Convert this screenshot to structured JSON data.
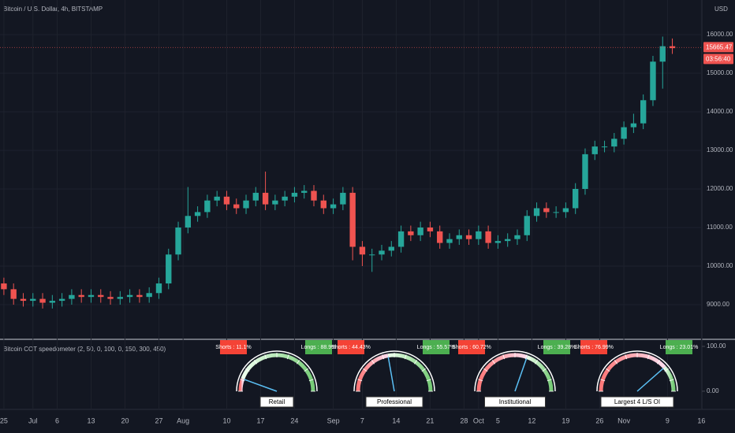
{
  "header": {
    "title": "Bitcoin / U.S. Dollar, 4h, BITSTAMP",
    "currency": "USD",
    "countdown": "03:56:40"
  },
  "chart_data": [
    {
      "type": "candlestick",
      "x": [
        0,
        2,
        4,
        6,
        8,
        10,
        12,
        14,
        16,
        18,
        20,
        22,
        24,
        26,
        28,
        30,
        32,
        34,
        36,
        38,
        40,
        42,
        44,
        46,
        48,
        50,
        52,
        54,
        56,
        58,
        60,
        62,
        64,
        66,
        68,
        70,
        72,
        74,
        76,
        78,
        80,
        82,
        84,
        86,
        88,
        90,
        92,
        94,
        96,
        98,
        100,
        102,
        104,
        106,
        108,
        110,
        112,
        114,
        116,
        118,
        120,
        122,
        124,
        126,
        128,
        130,
        132,
        134,
        136,
        138
      ],
      "open": [
        9550,
        9400,
        9150,
        9100,
        9150,
        9050,
        9100,
        9150,
        9250,
        9200,
        9250,
        9200,
        9150,
        9200,
        9250,
        9200,
        9300,
        9550,
        10300,
        11000,
        11300,
        11400,
        11700,
        11800,
        11600,
        11500,
        11700,
        11900,
        11600,
        11700,
        11800,
        11900,
        11950,
        11700,
        11500,
        11600,
        11900,
        10500,
        10300,
        10300,
        10400,
        10500,
        10900,
        10800,
        11000,
        10900,
        10600,
        10700,
        10800,
        10700,
        10900,
        10600,
        10650,
        10700,
        10800,
        11300,
        11500,
        11400,
        11400,
        11500,
        12000,
        12900,
        13100,
        13100,
        13300,
        13600,
        13700,
        14300,
        15300,
        15700
      ],
      "high": [
        9700,
        9550,
        9300,
        9300,
        9300,
        9250,
        9300,
        9400,
        9400,
        9400,
        9400,
        9350,
        9350,
        9400,
        9400,
        9450,
        9700,
        10450,
        11150,
        12050,
        11550,
        11850,
        11950,
        11950,
        11750,
        11850,
        12050,
        12450,
        11850,
        11950,
        12050,
        12100,
        12100,
        11850,
        11750,
        12050,
        12050,
        10650,
        10450,
        10550,
        10650,
        11050,
        11050,
        11150,
        11150,
        11050,
        10850,
        10950,
        10950,
        11050,
        11050,
        10800,
        10850,
        10950,
        11450,
        11650,
        11650,
        11550,
        11650,
        12150,
        13050,
        13250,
        13250,
        13450,
        13750,
        13950,
        14450,
        15450,
        15950,
        15900
      ],
      "low": [
        9250,
        9000,
        8950,
        8950,
        8900,
        8900,
        8950,
        9000,
        9050,
        9050,
        9050,
        9000,
        9000,
        9050,
        9050,
        9050,
        9150,
        9400,
        10150,
        10850,
        11150,
        11250,
        11550,
        11450,
        11350,
        11350,
        11550,
        11450,
        11450,
        11550,
        11650,
        11750,
        11550,
        11350,
        11350,
        11450,
        10150,
        10000,
        9850,
        10150,
        10250,
        10350,
        10650,
        10650,
        10750,
        10450,
        10450,
        10550,
        10550,
        10550,
        10450,
        10450,
        10500,
        10550,
        10650,
        11150,
        11250,
        11250,
        11250,
        11350,
        11850,
        12750,
        12950,
        12950,
        13150,
        13450,
        13550,
        14150,
        14600,
        15500
      ],
      "close": [
        9400,
        9150,
        9100,
        9150,
        9050,
        9100,
        9150,
        9250,
        9200,
        9250,
        9200,
        9150,
        9200,
        9250,
        9200,
        9300,
        9550,
        10300,
        11000,
        11300,
        11400,
        11700,
        11800,
        11600,
        11500,
        11700,
        11900,
        11600,
        11700,
        11800,
        11900,
        11950,
        11700,
        11500,
        11600,
        11900,
        10500,
        10300,
        10300,
        10400,
        10500,
        10900,
        10800,
        11000,
        10900,
        10600,
        10700,
        10800,
        10700,
        10900,
        10600,
        10650,
        10700,
        10800,
        11300,
        11500,
        11400,
        11400,
        11500,
        12000,
        12900,
        13100,
        13100,
        13300,
        13600,
        13700,
        14300,
        15300,
        15700,
        15650
      ],
      "up_color": "#26a69a",
      "down_color": "#ef5350",
      "last_price": 15665.47,
      "xlim": [
        -0.8,
        144.1
      ],
      "xticks": [
        {
          "value": 0,
          "label": "25"
        },
        {
          "value": 6,
          "label": "Jul"
        },
        {
          "value": 11,
          "label": "6"
        },
        {
          "value": 18,
          "label": "13"
        },
        {
          "value": 25,
          "label": "20"
        },
        {
          "value": 32,
          "label": "27"
        },
        {
          "value": 37,
          "label": "Aug"
        },
        {
          "value": 46,
          "label": "10"
        },
        {
          "value": 53,
          "label": "17"
        },
        {
          "value": 60,
          "label": "24"
        },
        {
          "value": 68,
          "label": "Sep"
        },
        {
          "value": 74,
          "label": "7"
        },
        {
          "value": 81,
          "label": "14"
        },
        {
          "value": 88,
          "label": "21"
        },
        {
          "value": 95,
          "label": "28"
        },
        {
          "value": 98,
          "label": "Oct"
        },
        {
          "value": 102,
          "label": "5"
        },
        {
          "value": 109,
          "label": "12"
        },
        {
          "value": 116,
          "label": "19"
        },
        {
          "value": 123,
          "label": "26"
        },
        {
          "value": 128,
          "label": "Nov"
        },
        {
          "value": 137,
          "label": "9"
        },
        {
          "value": 144,
          "label": "16"
        }
      ],
      "ylim": [
        8122,
        16898
      ],
      "yticks": [
        {
          "value": 9000,
          "label": "9000.00"
        },
        {
          "value": 10000,
          "label": "10000.00"
        },
        {
          "value": 11000,
          "label": "11000.00"
        },
        {
          "value": 12000,
          "label": "12000.00"
        },
        {
          "value": 13000,
          "label": "13000.00"
        },
        {
          "value": 14000,
          "label": "14000.00"
        },
        {
          "value": 15000,
          "label": "15000.00"
        },
        {
          "value": 16000,
          "label": "16000.00"
        }
      ],
      "grid": true
    },
    {
      "type": "gauge",
      "title": "Bitcoin COT speedometer (2, 50, 0, 100, 0, 150, 300, 450)",
      "ylim": [
        -37,
        114
      ],
      "yticks": [
        {
          "value": 100,
          "label": "100.00"
        },
        {
          "value": 0,
          "label": "0.00"
        }
      ],
      "gauges": [
        {
          "name": "Retail",
          "shorts": 11.1,
          "longs": 88.9,
          "shorts_label": "Shorts : 11.1%",
          "longs_label": "Longs : 88.9%"
        },
        {
          "name": "Professional",
          "shorts": 44.43,
          "longs": 55.57,
          "shorts_label": "Shorts : 44.43%",
          "longs_label": "Longs : 55.57%"
        },
        {
          "name": "Institutional",
          "shorts": 60.72,
          "longs": 39.28,
          "shorts_label": "Shorts : 60.72%",
          "longs_label": "Longs : 39.28%"
        },
        {
          "name": "Largest 4 L/S OI",
          "shorts": 76.99,
          "longs": 23.01,
          "shorts_label": "Shorts : 76.99%",
          "longs_label": "Longs : 23.01%"
        }
      ],
      "needle_color": "#5bc0f5"
    }
  ]
}
